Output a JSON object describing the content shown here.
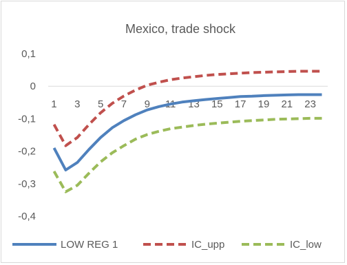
{
  "chart_data": {
    "type": "line",
    "title": "Mexico, trade shock",
    "xlabel": "",
    "ylabel": "",
    "x": [
      1,
      2,
      3,
      4,
      5,
      6,
      7,
      8,
      9,
      10,
      11,
      12,
      13,
      14,
      15,
      16,
      17,
      18,
      19,
      20,
      21,
      22,
      23,
      24
    ],
    "x_tick_labels": [
      "1",
      "3",
      "5",
      "7",
      "9",
      "11",
      "13",
      "15",
      "17",
      "19",
      "21",
      "23"
    ],
    "y_tick_labels": [
      "0,1",
      "0",
      "-0,1",
      "-0,2",
      "-0,3",
      "-0,4"
    ],
    "y_ticks": [
      0.1,
      0,
      -0.1,
      -0.2,
      -0.3,
      -0.4
    ],
    "ylim": [
      -0.4,
      0.1
    ],
    "grid": false,
    "legend_position": "bottom",
    "series": [
      {
        "name": "LOW REG 1",
        "color": "#4f81bd",
        "style": "solid",
        "values": [
          -0.19,
          -0.258,
          -0.235,
          -0.195,
          -0.158,
          -0.128,
          -0.106,
          -0.088,
          -0.073,
          -0.063,
          -0.055,
          -0.049,
          -0.045,
          -0.041,
          -0.038,
          -0.035,
          -0.032,
          -0.031,
          -0.029,
          -0.028,
          -0.027,
          -0.026,
          -0.026,
          -0.026
        ]
      },
      {
        "name": "IC_upp",
        "color": "#c0504d",
        "style": "dashed",
        "values": [
          -0.118,
          -0.183,
          -0.158,
          -0.118,
          -0.082,
          -0.053,
          -0.03,
          -0.012,
          0.003,
          0.012,
          0.02,
          0.025,
          0.029,
          0.033,
          0.036,
          0.038,
          0.04,
          0.042,
          0.043,
          0.044,
          0.045,
          0.046,
          0.046,
          0.046
        ]
      },
      {
        "name": "IC_low",
        "color": "#9bbb59",
        "style": "dashed",
        "values": [
          -0.262,
          -0.325,
          -0.305,
          -0.268,
          -0.233,
          -0.205,
          -0.183,
          -0.163,
          -0.149,
          -0.139,
          -0.131,
          -0.126,
          -0.121,
          -0.117,
          -0.114,
          -0.111,
          -0.108,
          -0.106,
          -0.104,
          -0.102,
          -0.101,
          -0.1,
          -0.099,
          -0.099
        ]
      }
    ]
  }
}
